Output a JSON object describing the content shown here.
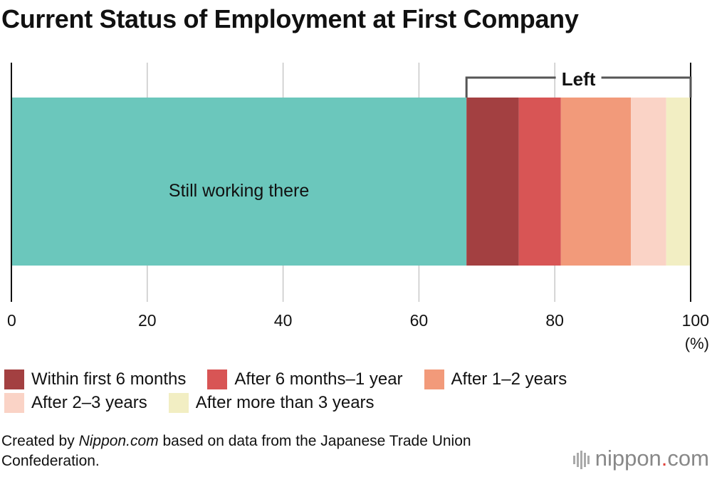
{
  "title": "Current Status of Employment at First Company",
  "chart_data": {
    "type": "bar",
    "orientation": "horizontal-stacked",
    "title": "Current Status of Employment at First Company",
    "xlim": [
      0,
      100
    ],
    "x_ticks": [
      "0",
      "20",
      "40",
      "60",
      "80",
      "100"
    ],
    "x_unit": "(%)",
    "grid": true,
    "series": [
      {
        "name": "Still working there",
        "value": 67.0,
        "color": "#6bc7bc"
      },
      {
        "name": "Within first 6 months",
        "value": 7.7,
        "color": "#a34041"
      },
      {
        "name": "After 6 months–1 year",
        "value": 6.2,
        "color": "#d85555"
      },
      {
        "name": "After 1–2 years",
        "value": 10.3,
        "color": "#f29a7a"
      },
      {
        "name": "After 2–3 years",
        "value": 5.2,
        "color": "#fad3c6"
      },
      {
        "name": "After more than 3 years",
        "value": 3.6,
        "color": "#f2eec3"
      }
    ],
    "bracket_label": "Left",
    "inner_label": "Still working there",
    "legend_position": "bottom"
  },
  "legend": {
    "rows": [
      [
        {
          "label": "Within first 6 months",
          "color": "#a34041"
        },
        {
          "label": "After 6 months–1 year",
          "color": "#d85555"
        },
        {
          "label": "After 1–2 years",
          "color": "#f29a7a"
        }
      ],
      [
        {
          "label": "After 2–3 years",
          "color": "#fad3c6"
        },
        {
          "label": "After more than 3 years",
          "color": "#f2eec3"
        }
      ]
    ]
  },
  "source": {
    "prefix": "Created by ",
    "site": "Nippon.com",
    "suffix": " based on data from the Japanese Trade Union Confederation."
  },
  "brand": {
    "name": "nippon",
    "dot": ".",
    "tld": "com"
  }
}
